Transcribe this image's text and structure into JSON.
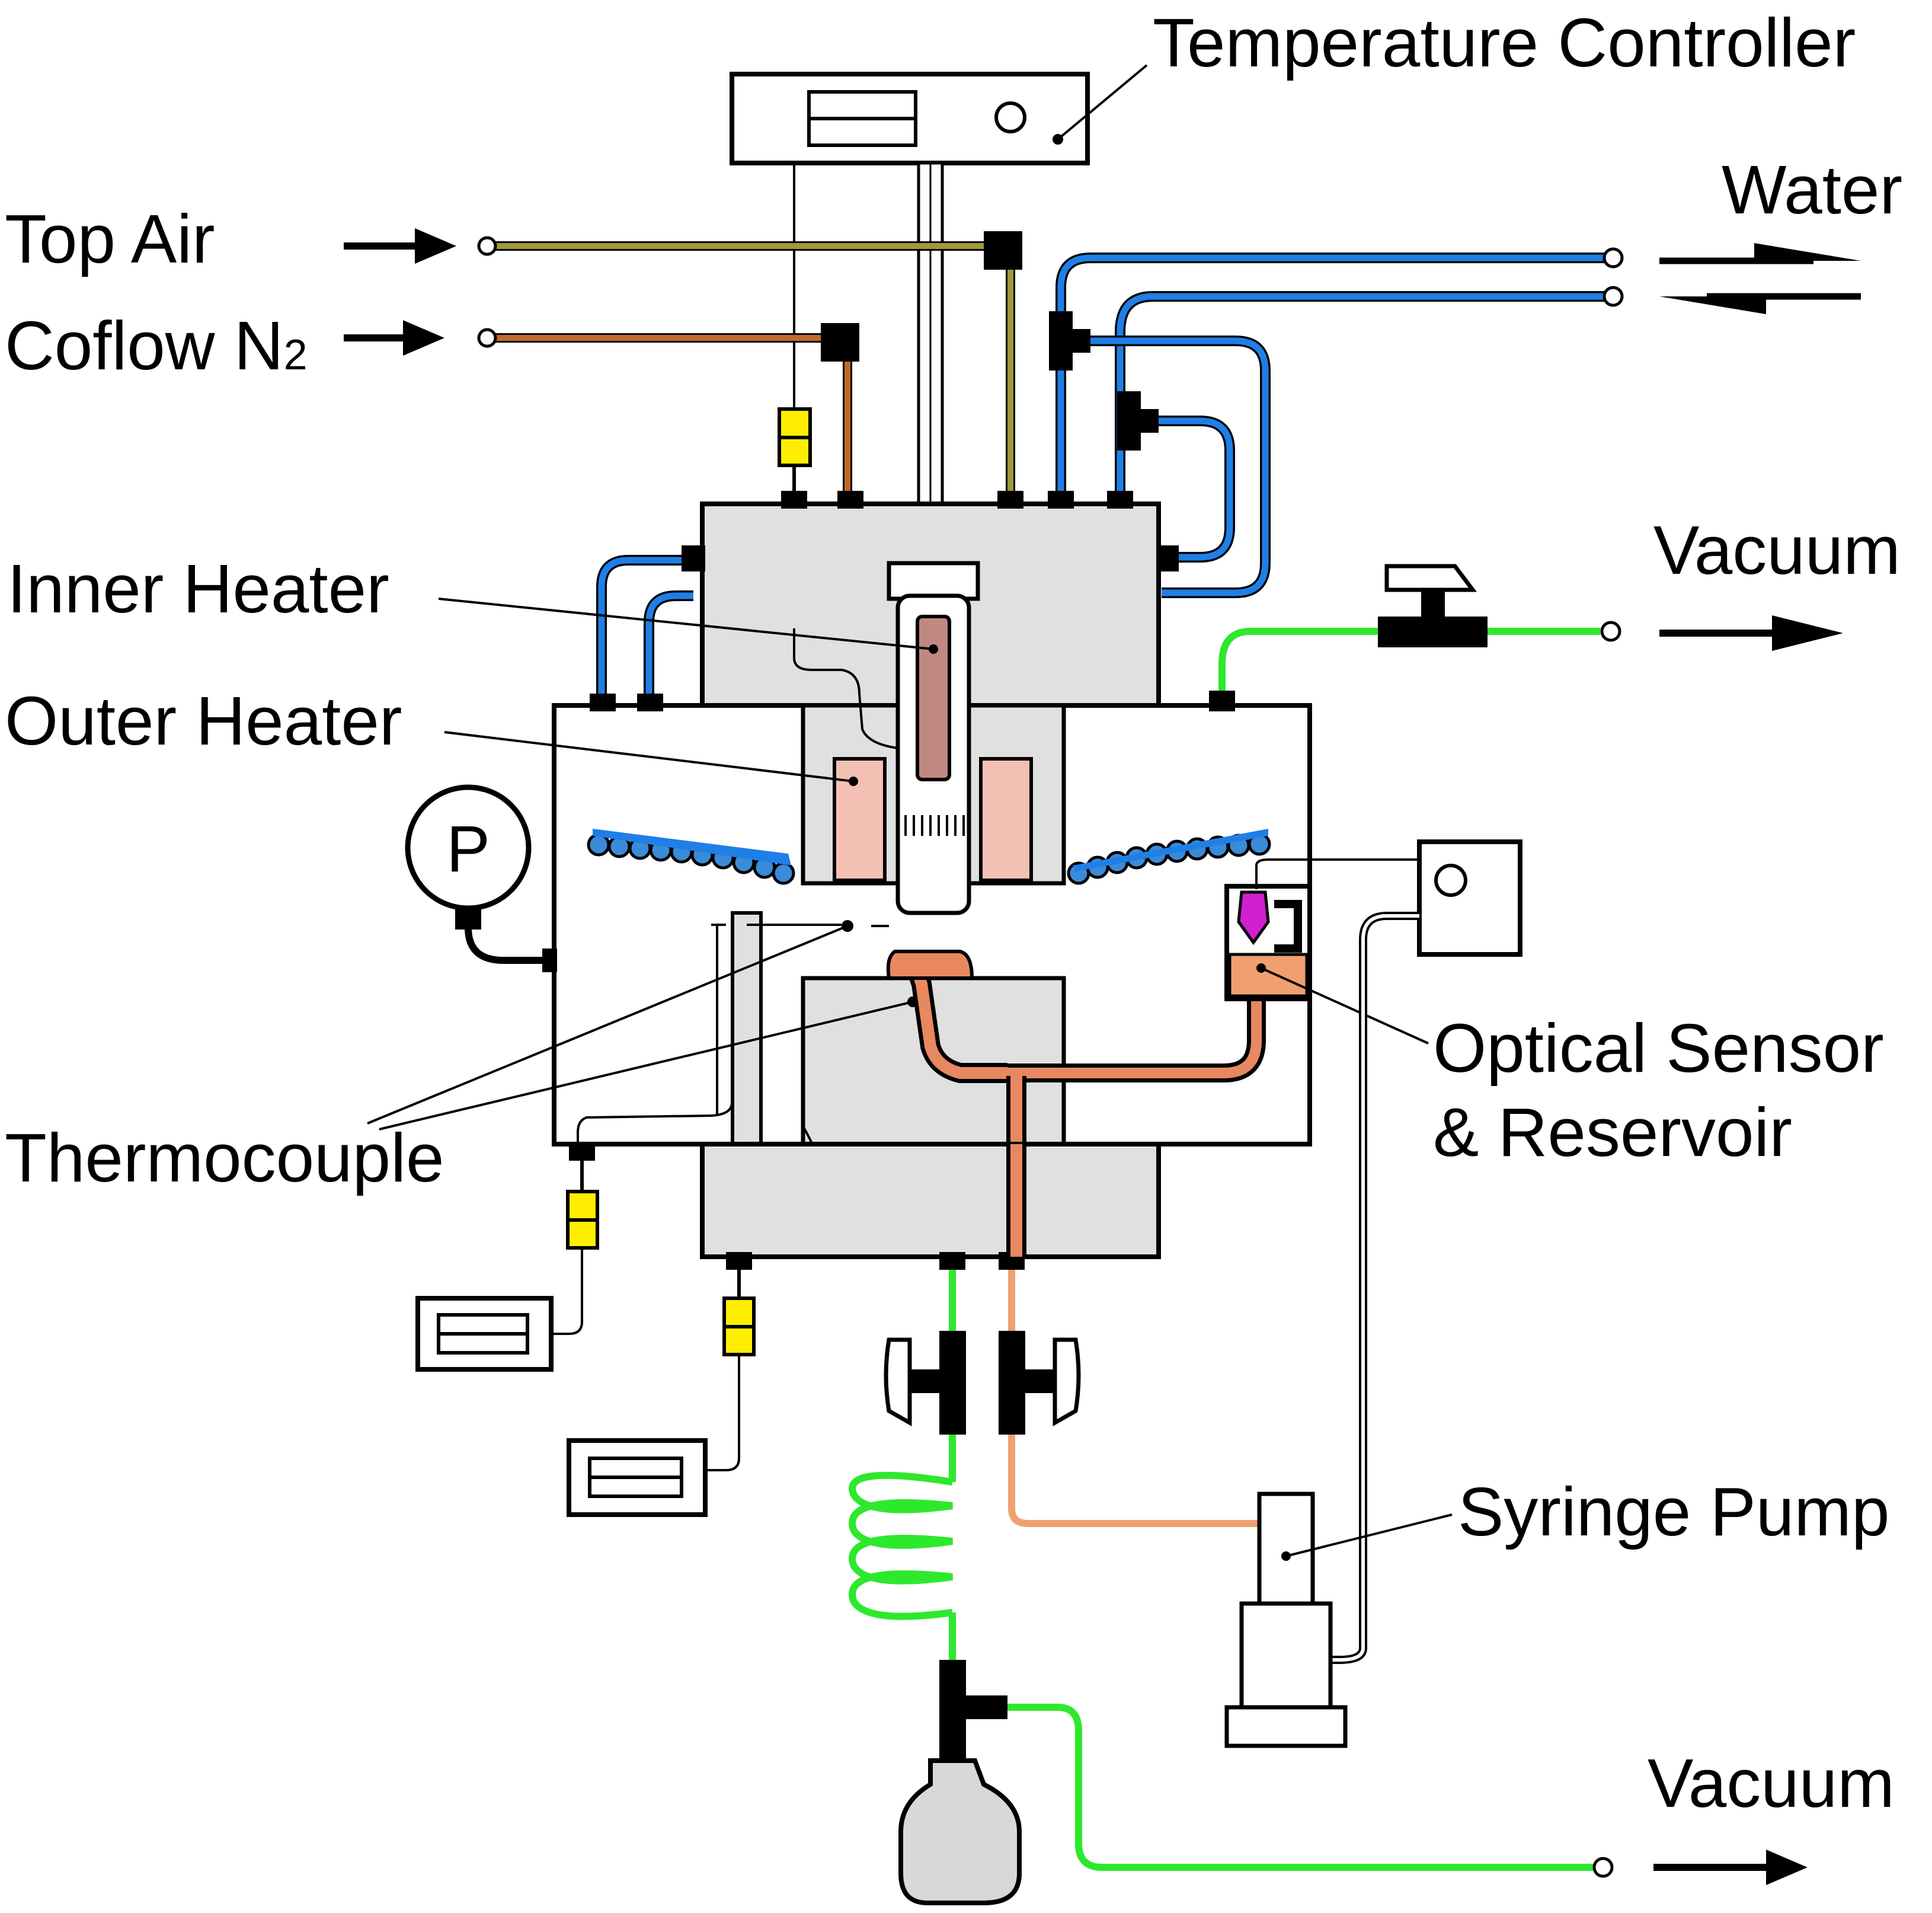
{
  "labels": {
    "temperature_controller": "Temperature Controller",
    "water": "Water",
    "top_air": "Top Air",
    "coflow": "Coflow N",
    "coflow_subscript": "2",
    "vacuum_top": "Vacuum",
    "inner_heater": "Inner Heater",
    "outer_heater": "Outer Heater",
    "pressure_gauge": "P",
    "optical_sensor_line1": "Optical Sensor",
    "optical_sensor_line2": "& Reservoir",
    "thermocouple": "Thermocouple",
    "syringe_pump": "Syringe Pump",
    "vacuum_bottom": "Vacuum"
  },
  "colors": {
    "water_line": "#1f7fe6",
    "top_air_line": "#a09a3c",
    "coflow_line": "#c06a2a",
    "vacuum_line": "#2ee82e",
    "chamber_fill": "#e0e0e0",
    "heater_fill": "#f5c0b4",
    "reservoir_fill": "#f0a070",
    "sensor_tip": "#d020d0",
    "thermocouple_plug": "#ffee00"
  }
}
